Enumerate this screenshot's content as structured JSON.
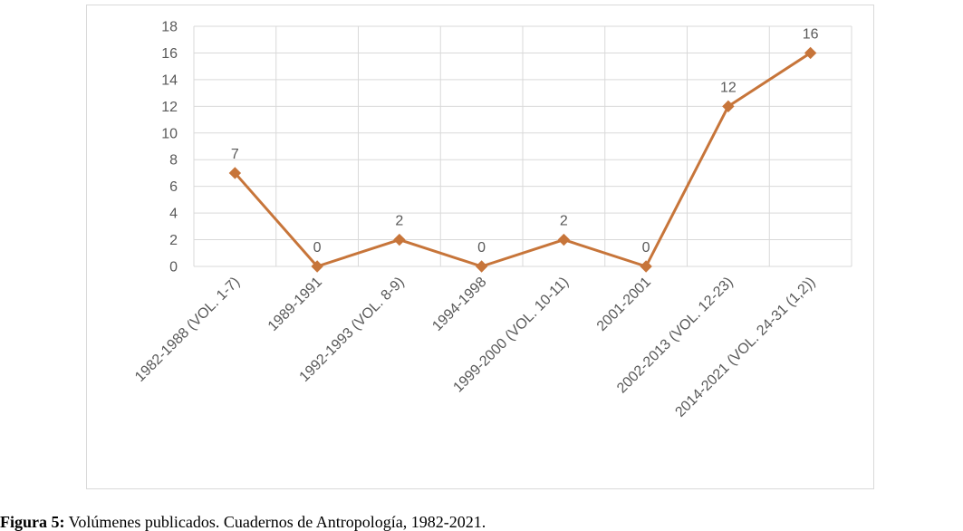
{
  "chart_data": {
    "type": "line",
    "categories": [
      "1982-1988 (VOL. 1-7)",
      "1989-1991",
      "1992-1993 (VOL. 8-9)",
      "1994-1998",
      "1999-2000 (VOL. 10-11)",
      "2001-2001",
      "2002-2013 (VOL. 12-23)",
      "2014-2021 (VOL. 24-31 (1,2))"
    ],
    "values": [
      7,
      0,
      2,
      0,
      2,
      0,
      12,
      16
    ],
    "data_labels": [
      "7",
      "0",
      "2",
      "0",
      "2",
      "0",
      "12",
      "16"
    ],
    "ylim": [
      0,
      18
    ],
    "yticks": [
      "0",
      "2",
      "4",
      "6",
      "8",
      "10",
      "12",
      "14",
      "16",
      "18"
    ],
    "grid": true,
    "line_color": "#c7753a",
    "marker": "diamond"
  },
  "caption": {
    "label": "Figura 5:",
    "text": " Volúmenes publicados. Cuadernos de Antropología, 1982-2021."
  }
}
